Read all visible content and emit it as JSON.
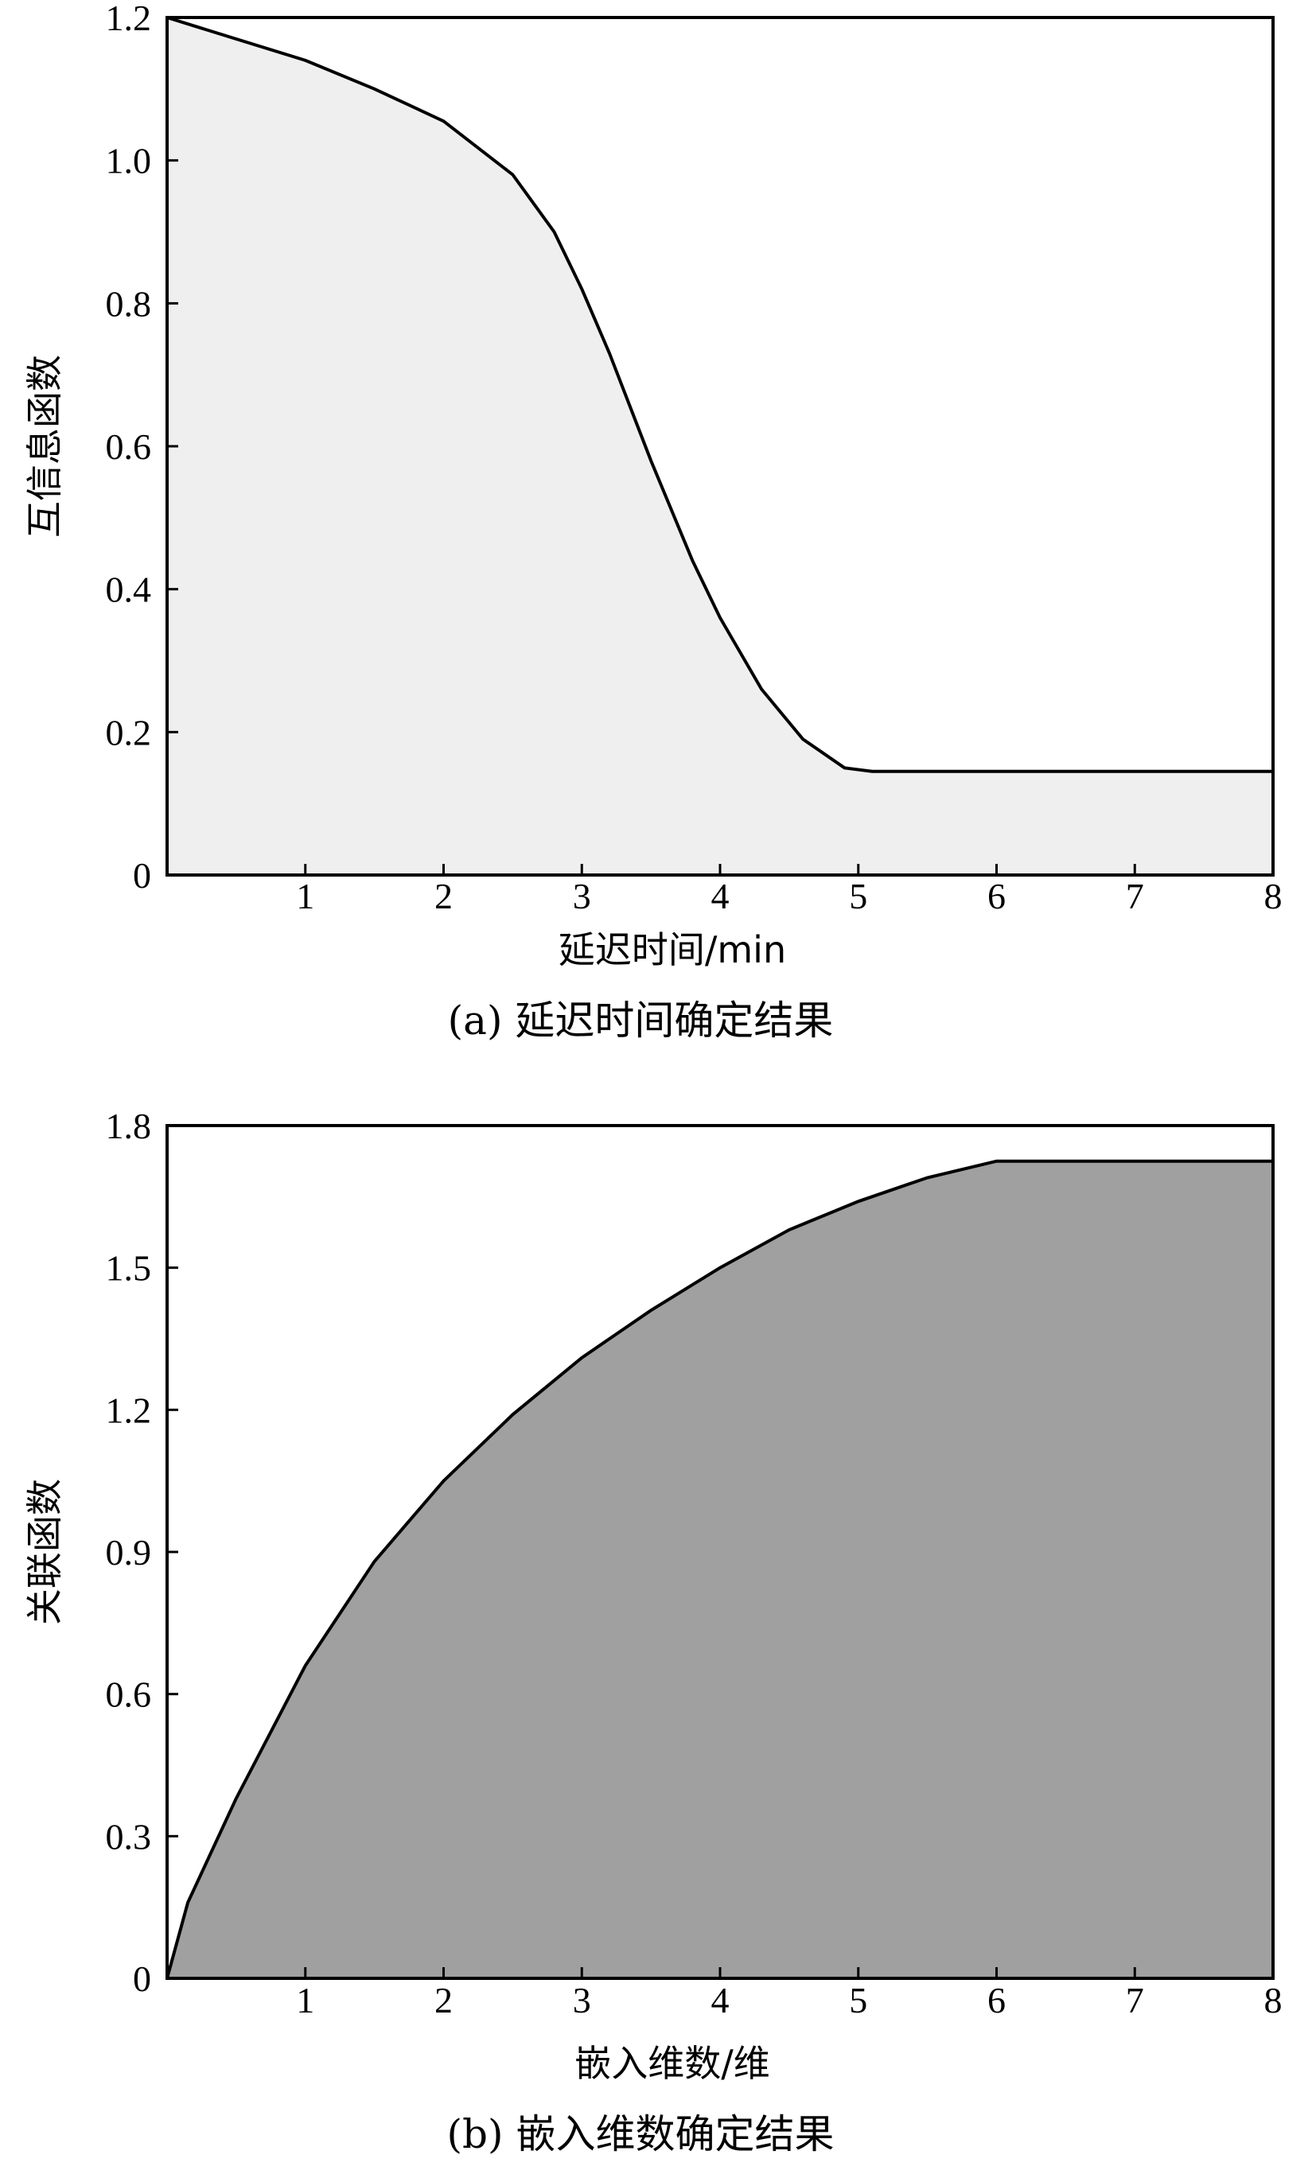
{
  "chart_data": [
    {
      "type": "area",
      "caption": "(a) 延迟时间确定结果",
      "xlabel": "延迟时间/min",
      "ylabel": "互信息函数",
      "xlim": [
        0,
        8
      ],
      "ylim": [
        0,
        1.2
      ],
      "x_ticks": [
        1,
        2,
        3,
        4,
        5,
        6,
        7,
        8
      ],
      "x_tick_labels": [
        "1",
        "2",
        "3",
        "4",
        "5",
        "6",
        "7",
        "8"
      ],
      "y_ticks": [
        0,
        0.2,
        0.4,
        0.6,
        0.8,
        1.0,
        1.2
      ],
      "y_tick_labels": [
        "0",
        "0.2",
        "0.4",
        "0.6",
        "0.8",
        "1.0",
        "1.2"
      ],
      "fill_color": "#efefef",
      "line_color": "#000000",
      "series": [
        {
          "x": [
            0,
            0.5,
            1,
            1.5,
            2,
            2.5,
            2.8,
            3,
            3.2,
            3.5,
            3.8,
            4,
            4.3,
            4.6,
            4.9,
            5.1,
            5.5,
            6,
            7,
            8
          ],
          "y": [
            1.2,
            1.17,
            1.14,
            1.1,
            1.055,
            0.98,
            0.9,
            0.82,
            0.73,
            0.58,
            0.44,
            0.36,
            0.26,
            0.19,
            0.15,
            0.145,
            0.145,
            0.145,
            0.145,
            0.145
          ]
        }
      ]
    },
    {
      "type": "area",
      "caption": "(b) 嵌入维数确定结果",
      "xlabel": "嵌入维数/维",
      "ylabel": "关联函数",
      "xlim": [
        0,
        8
      ],
      "ylim": [
        0,
        1.8
      ],
      "x_ticks": [
        1,
        2,
        3,
        4,
        5,
        6,
        7,
        8
      ],
      "x_tick_labels": [
        "1",
        "2",
        "3",
        "4",
        "5",
        "6",
        "7",
        "8"
      ],
      "y_ticks": [
        0,
        0.3,
        0.6,
        0.9,
        1.2,
        1.5,
        1.8
      ],
      "y_tick_labels": [
        "0",
        "0.3",
        "0.6",
        "0.9",
        "1.2",
        "1.5",
        "1.8"
      ],
      "fill_color": "#a0a0a0",
      "line_color": "#000000",
      "series": [
        {
          "x": [
            0,
            0.15,
            0.5,
            1,
            1.5,
            2,
            2.5,
            3,
            3.5,
            4,
            4.5,
            5,
            5.5,
            6,
            7,
            8
          ],
          "y": [
            0,
            0.16,
            0.38,
            0.66,
            0.88,
            1.05,
            1.19,
            1.31,
            1.41,
            1.5,
            1.58,
            1.64,
            1.69,
            1.725,
            1.725,
            1.725
          ]
        }
      ]
    }
  ]
}
